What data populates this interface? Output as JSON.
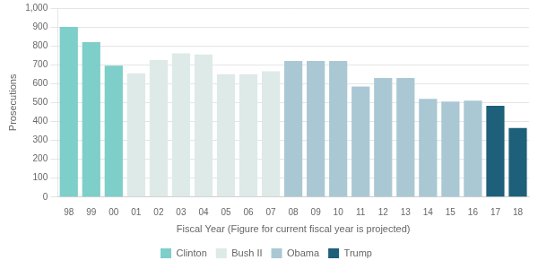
{
  "chart_data": {
    "type": "bar",
    "categories": [
      "98",
      "99",
      "00",
      "01",
      "02",
      "03",
      "04",
      "05",
      "06",
      "07",
      "08",
      "09",
      "10",
      "11",
      "12",
      "13",
      "14",
      "15",
      "16",
      "17",
      "18"
    ],
    "series": [
      {
        "name": "Clinton",
        "color": "#7ececa",
        "values": [
          900,
          820,
          695,
          null,
          null,
          null,
          null,
          null,
          null,
          null,
          null,
          null,
          null,
          null,
          null,
          null,
          null,
          null,
          null,
          null,
          null
        ]
      },
      {
        "name": "Bush II",
        "color": "#ddeae8",
        "values": [
          null,
          null,
          null,
          655,
          725,
          760,
          755,
          650,
          650,
          665,
          null,
          null,
          null,
          null,
          null,
          null,
          null,
          null,
          null,
          null,
          null
        ]
      },
      {
        "name": "Obama",
        "color": "#aac8d4",
        "values": [
          null,
          null,
          null,
          null,
          null,
          null,
          null,
          null,
          null,
          null,
          720,
          720,
          720,
          585,
          630,
          630,
          520,
          505,
          510,
          null,
          null
        ]
      },
      {
        "name": "Trump",
        "color": "#1e5f7a",
        "values": [
          null,
          null,
          null,
          null,
          null,
          null,
          null,
          null,
          null,
          null,
          null,
          null,
          null,
          null,
          null,
          null,
          null,
          null,
          null,
          483,
          365
        ]
      }
    ],
    "xlabel": "Fiscal Year (Figure for current fiscal year is projected)",
    "ylabel": "Prosecutions",
    "ylim": [
      0,
      1000
    ],
    "yticks": [
      0,
      100,
      200,
      300,
      400,
      500,
      600,
      700,
      800,
      900,
      {
        "value": 1000,
        "label": "1,000"
      }
    ],
    "grid": "y",
    "legend": "bottom"
  }
}
